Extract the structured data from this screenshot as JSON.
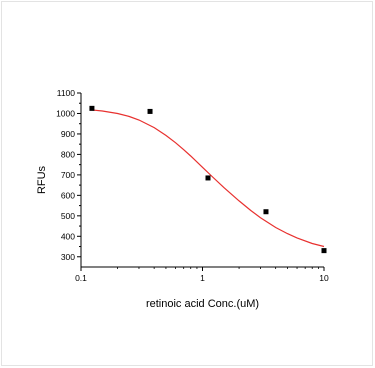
{
  "chart_data": {
    "type": "scatter",
    "title": "",
    "xlabel": "retinoic acid Conc.(uM)",
    "ylabel": "RFUs",
    "x_scale": "log",
    "xlim": [
      0.1,
      10
    ],
    "ylim": [
      250,
      1100
    ],
    "x_ticks": [
      0.1,
      1,
      10
    ],
    "x_tick_labels": [
      "0.1",
      "1",
      "10"
    ],
    "y_ticks": [
      300,
      400,
      500,
      600,
      700,
      800,
      900,
      1000,
      1100
    ],
    "y_tick_labels": [
      "300",
      "400",
      "500",
      "600",
      "700",
      "800",
      "900",
      "1000",
      "1100"
    ],
    "grid": false,
    "legend": "none",
    "series": [
      {
        "type": "scatter",
        "marker": "square",
        "color": "#000000",
        "x": [
          0.123,
          0.37,
          1.11,
          3.33,
          10
        ],
        "y": [
          1025,
          1010,
          685,
          520,
          330
        ]
      },
      {
        "type": "line",
        "fit": "four-parameter logistic",
        "color": "#e8312f",
        "x": [
          0.12,
          0.15,
          0.2,
          0.25,
          0.3,
          0.4,
          0.5,
          0.6,
          0.7,
          0.8,
          1.0,
          1.2,
          1.5,
          2.0,
          2.5,
          3.0,
          4.0,
          5.0,
          6.0,
          8.0,
          10.0
        ],
        "y": [
          1018,
          1012,
          1000,
          985,
          968,
          931,
          893,
          857,
          823,
          792,
          737,
          692,
          638,
          573,
          526,
          491,
          443,
          413,
          392,
          365,
          350
        ]
      }
    ]
  }
}
